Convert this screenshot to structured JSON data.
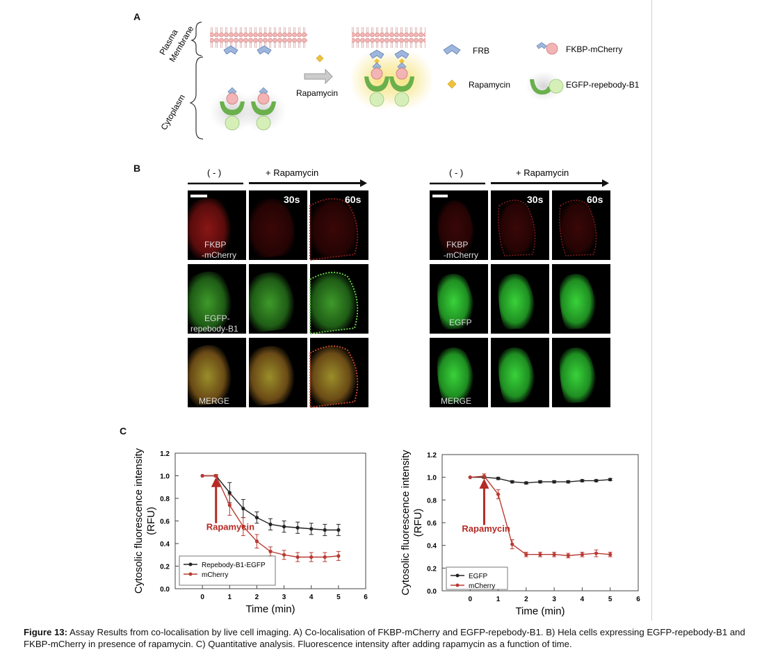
{
  "panels": {
    "a": "A",
    "b": "B",
    "c": "C"
  },
  "panel_a": {
    "membrane_label_1": "Plasma",
    "membrane_label_2": "Membrane",
    "cytoplasm_label": "Cytoplasm",
    "arrow_label": "Rapamycin",
    "legend": {
      "frb": "FRB",
      "fkbp": "FKBP-mCherry",
      "rapamycin": "Rapamycin",
      "egfp": "EGFP-repebody-B1"
    }
  },
  "panel_b": {
    "left": {
      "neg": "( - )",
      "plus": "+ Rapamycin",
      "t1": "30s",
      "t2": "60s",
      "row1_a": "FKBP",
      "row1_b": "-mCherry",
      "row2_a": "EGFP-",
      "row2_b": "repebody-B1",
      "row3": "MERGE"
    },
    "right": {
      "neg": "( - )",
      "plus": "+ Rapamycin",
      "t1": "30s",
      "t2": "60s",
      "row1_a": "FKBP",
      "row1_b": "-mCherry",
      "row2": "EGFP",
      "row3": "MERGE"
    }
  },
  "colors": {
    "red_series": "#b83a32",
    "black_series": "#222222",
    "arrow": "#b52a24"
  },
  "chart_data": [
    {
      "type": "line",
      "ylabel_1": "Cytosolic fluorescence intensity",
      "ylabel_2": "(RFU)",
      "xlabel": "Time (min)",
      "xlim": [
        -1,
        6
      ],
      "ylim": [
        0,
        1.2
      ],
      "xticks": [
        "0",
        "1",
        "2",
        "3",
        "4",
        "5",
        "6"
      ],
      "yticks": [
        "0.0",
        "0.2",
        "0.4",
        "0.6",
        "0.8",
        "1.0",
        "1.2"
      ],
      "annotation": "Rapamycin",
      "annotation_x": 0.5,
      "legend_position": "bottom-left",
      "series": [
        {
          "name": "Repebody-B1-EGFP",
          "color": "#222222",
          "x": [
            0,
            0.5,
            1,
            1.5,
            2,
            2.5,
            3,
            3.5,
            4,
            4.5,
            5
          ],
          "y": [
            1.0,
            1.0,
            0.85,
            0.71,
            0.63,
            0.57,
            0.55,
            0.54,
            0.53,
            0.52,
            0.52
          ],
          "err": [
            0,
            0.01,
            0.09,
            0.08,
            0.05,
            0.05,
            0.05,
            0.05,
            0.05,
            0.05,
            0.05
          ]
        },
        {
          "name": "mCherry",
          "color": "#b83a32",
          "x": [
            0,
            0.5,
            1,
            1.5,
            2,
            2.5,
            3,
            3.5,
            4,
            4.5,
            5
          ],
          "y": [
            1.0,
            1.0,
            0.74,
            0.55,
            0.42,
            0.33,
            0.3,
            0.28,
            0.28,
            0.28,
            0.29
          ],
          "err": [
            0,
            0.01,
            0.09,
            0.08,
            0.06,
            0.04,
            0.04,
            0.04,
            0.04,
            0.04,
            0.04
          ]
        }
      ]
    },
    {
      "type": "line",
      "ylabel_1": "Cytosolic fluorescence intensity",
      "ylabel_2": "(RFU)",
      "xlabel": "Time (min)",
      "xlim": [
        -1,
        6
      ],
      "ylim": [
        0,
        1.2
      ],
      "xticks": [
        "0",
        "1",
        "2",
        "3",
        "4",
        "5",
        "6"
      ],
      "yticks": [
        "0.0",
        "0.2",
        "0.4",
        "0.6",
        "0.8",
        "1.0",
        "1.2"
      ],
      "annotation": "Rapamycin",
      "annotation_x": 0.5,
      "legend_position": "bottom-left",
      "series": [
        {
          "name": "EGFP",
          "color": "#222222",
          "x": [
            0,
            0.5,
            1,
            1.5,
            2,
            2.5,
            3,
            3.5,
            4,
            4.5,
            5
          ],
          "y": [
            1.0,
            1.0,
            0.99,
            0.96,
            0.95,
            0.96,
            0.96,
            0.96,
            0.97,
            0.97,
            0.98
          ],
          "err": [
            0,
            0.01,
            0.01,
            0.01,
            0.01,
            0.01,
            0.01,
            0.01,
            0.01,
            0.01,
            0.01
          ]
        },
        {
          "name": "mCherry",
          "color": "#b83a32",
          "x": [
            0,
            0.5,
            1,
            1.5,
            2,
            2.5,
            3,
            3.5,
            4,
            4.5,
            5
          ],
          "y": [
            1.0,
            1.01,
            0.85,
            0.41,
            0.32,
            0.32,
            0.32,
            0.31,
            0.32,
            0.33,
            0.32
          ],
          "err": [
            0,
            0.02,
            0.04,
            0.04,
            0.02,
            0.02,
            0.02,
            0.02,
            0.02,
            0.03,
            0.02
          ]
        }
      ]
    }
  ],
  "caption": {
    "label": "Figure 13:",
    "text": " Assay Results from co-localisation by live cell imaging. A) Co-localisation of FKBP-mCherry and EGFP-repebody-B1. B) Hela cells expressing EGFP-repebody-B1 and FKBP-mCherry in presence of rapamycin. C) Quantitative analysis. Fluorescence intensity after adding rapamycin as a function of time."
  }
}
